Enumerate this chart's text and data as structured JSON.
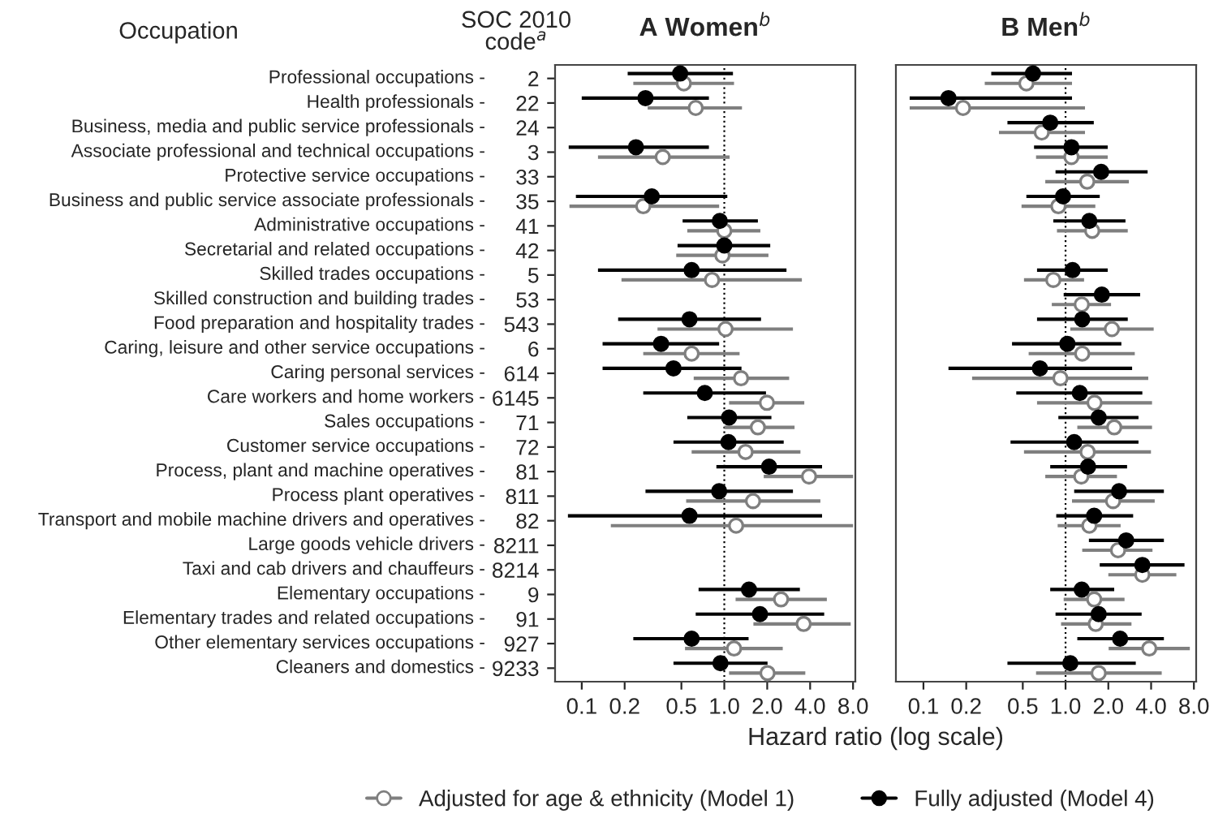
{
  "chart_data": [
    {
      "type": "scatter",
      "orientation": "horizontal",
      "title": "A Women$^{b}$",
      "xlabel": "Hazard ratio (log scale)",
      "annotations": [
        "Occupation",
        "SOC 2010\ncode$^{a}$"
      ],
      "categories": [
        "Professional occupations -",
        "Health professionals -",
        "Business, media and public service professionals -",
        "Associate professional and technical occupations -",
        "Protective service occupations -",
        "Business and public service associate professionals -",
        "Administrative occupations -",
        "Secretarial and related occupations -",
        "Skilled trades occupations -",
        "Skilled construction and building trades -",
        "Food preparation and hospitality trades -",
        "Caring, leisure and other service occupations -",
        "Caring personal services -",
        "Care workers and home workers -",
        "Sales occupations -",
        "Customer service occupations -",
        "Process, plant and machine operatives -",
        "Process plant operatives -",
        "Transport and mobile machine drivers and operatives -",
        "Large goods vehicle drivers -",
        "Taxi and cab drivers and chauffeurs -",
        "Elementary occupations -",
        "Elementary trades and related occupations -",
        "Other elementary services occupations -",
        "Cleaners and domestics -"
      ],
      "y2_categories": [
        "2",
        "22",
        "24",
        "3",
        "33",
        "35",
        "41",
        "42",
        "5",
        "53",
        "543",
        "6",
        "614",
        "6145",
        "71",
        "72",
        "81",
        "811",
        "82",
        "8211",
        "8214",
        "9",
        "91",
        "927",
        "9233"
      ],
      "log": "x",
      "xlim": [
        0.065,
        8.3
      ],
      "xticks": [
        0.1,
        0.2,
        0.5,
        {
          "value": 1,
          "label": "1.0"
        },
        {
          "value": 2,
          "label": "2.0"
        },
        {
          "value": 4,
          "label": "4.0"
        },
        {
          "value": 8,
          "label": "8.0"
        }
      ],
      "grid": false,
      "legend": "bottom",
      "marker": "circle",
      "ref_lines": [
        {
          "axis": "x",
          "value": 1,
          "label": null,
          "line_style": "dotted",
          "color": "#000000"
        }
      ],
      "series": [
        {
          "name": "Adjusted for age & ethnicity (Model 1)",
          "color": "#7f7f7f",
          "values": [
            0.52,
            0.63,
            null,
            0.37,
            null,
            0.27,
            1.0,
            0.97,
            0.82,
            null,
            1.02,
            0.59,
            1.31,
            1.99,
            1.72,
            1.41,
            3.93,
            1.59,
            1.21,
            null,
            null,
            2.5,
            3.6,
            1.17,
            2.01
          ],
          "errors": [
            [
              0.23,
              1.17
            ],
            [
              0.29,
              1.33
            ],
            null,
            [
              0.13,
              1.09
            ],
            null,
            [
              0.082,
              0.92
            ],
            [
              0.55,
              1.79
            ],
            [
              0.46,
              2.04
            ],
            [
              0.19,
              3.5
            ],
            null,
            [
              0.34,
              3.03
            ],
            [
              0.27,
              1.28
            ],
            [
              0.61,
              2.85
            ],
            [
              1.08,
              3.64
            ],
            [
              1.0,
              3.11
            ],
            [
              0.59,
              3.42
            ],
            [
              1.89,
              8.0
            ],
            [
              0.54,
              4.72
            ],
            [
              0.16,
              8.0
            ],
            null,
            null,
            [
              1.2,
              5.24
            ],
            [
              1.6,
              7.7
            ],
            [
              0.53,
              2.57
            ],
            [
              1.08,
              3.7
            ]
          ]
        },
        {
          "name": "Fully adjusted (Model 4)",
          "color": "#000000",
          "values": [
            0.49,
            0.28,
            null,
            0.24,
            null,
            0.31,
            0.93,
            1.0,
            0.59,
            null,
            0.57,
            0.36,
            0.44,
            0.73,
            1.08,
            1.07,
            2.06,
            0.92,
            0.57,
            null,
            null,
            1.49,
            1.78,
            0.59,
            0.94
          ],
          "errors": [
            [
              0.21,
              1.15
            ],
            [
              0.1,
              0.78
            ],
            null,
            [
              0.081,
              0.78
            ],
            null,
            [
              0.091,
              1.05
            ],
            [
              0.51,
              1.72
            ],
            [
              0.47,
              2.1
            ],
            [
              0.13,
              2.73
            ],
            null,
            [
              0.18,
              1.81
            ],
            [
              0.14,
              0.92
            ],
            [
              0.14,
              1.32
            ],
            [
              0.27,
              1.96
            ],
            [
              0.55,
              2.14
            ],
            [
              0.44,
              2.61
            ],
            [
              0.88,
              4.85
            ],
            [
              0.28,
              3.03
            ],
            [
              0.08,
              4.85
            ],
            null,
            null,
            [
              0.66,
              3.39
            ],
            [
              0.63,
              5.02
            ],
            [
              0.23,
              1.48
            ],
            [
              0.44,
              2.01
            ]
          ]
        }
      ]
    },
    {
      "type": "scatter",
      "orientation": "horizontal",
      "title": "B Men$^{b}$",
      "tick_labels": "x",
      "categories": [
        null,
        null,
        null,
        null,
        null,
        null,
        null,
        null,
        null,
        null,
        null,
        null,
        null,
        null,
        null,
        null,
        null,
        null,
        null,
        null,
        null,
        null,
        null,
        null,
        null
      ],
      "log": "x",
      "xlim": [
        0.064,
        8.3
      ],
      "xticks": [
        0.1,
        0.2,
        0.5,
        {
          "value": 1,
          "label": "1.0"
        },
        {
          "value": 2,
          "label": "2.0"
        },
        {
          "value": 4,
          "label": "4.0"
        },
        {
          "value": 8,
          "label": "8.0"
        }
      ],
      "grid": false,
      "marker": "circle",
      "ref_lines": [
        {
          "axis": "x",
          "value": 1,
          "label": null,
          "line_style": "dotted",
          "color": "#000000"
        }
      ],
      "series": [
        {
          "color": "#7f7f7f",
          "values": [
            0.53,
            0.19,
            0.68,
            1.1,
            1.42,
            0.89,
            1.54,
            null,
            0.82,
            1.3,
            2.12,
            1.31,
            0.92,
            1.6,
            2.2,
            1.43,
            1.29,
            2.16,
            1.47,
            2.34,
            3.47,
            1.59,
            1.63,
            3.88,
            1.71
          ],
          "errors": [
            [
              0.27,
              1.11
            ],
            [
              0.08,
              1.37
            ],
            [
              0.34,
              1.37
            ],
            [
              0.62,
              1.98
            ],
            [
              0.72,
              2.79
            ],
            [
              0.49,
              1.62
            ],
            [
              0.87,
              2.74
            ],
            null,
            [
              0.51,
              1.35
            ],
            [
              0.8,
              2.09
            ],
            [
              1.08,
              4.17
            ],
            [
              0.55,
              3.07
            ],
            [
              0.22,
              3.82
            ],
            [
              0.63,
              4.06
            ],
            [
              1.21,
              4.06
            ],
            [
              0.51,
              3.99
            ],
            [
              0.72,
              2.3
            ],
            [
              1.11,
              4.24
            ],
            [
              0.88,
              2.44
            ],
            [
              1.31,
              4.09
            ],
            [
              2.0,
              6.02
            ],
            [
              0.97,
              2.6
            ],
            [
              0.93,
              2.91
            ],
            [
              2.01,
              7.49
            ],
            [
              0.62,
              4.75
            ]
          ]
        },
        {
          "color": "#000000",
          "values": [
            0.59,
            0.15,
            0.78,
            1.1,
            1.78,
            0.96,
            1.47,
            null,
            1.12,
            1.8,
            1.31,
            1.03,
            0.66,
            1.26,
            1.71,
            1.15,
            1.44,
            2.38,
            1.59,
            2.67,
            3.47,
            1.3,
            1.71,
            2.42,
            1.08
          ],
          "errors": [
            [
              0.3,
              1.11
            ],
            [
              0.08,
              1.11
            ],
            [
              0.39,
              1.58
            ],
            [
              0.6,
              1.98
            ],
            [
              0.85,
              3.78
            ],
            [
              0.53,
              1.74
            ],
            [
              0.82,
              2.64
            ],
            null,
            [
              0.63,
              1.98
            ],
            [
              0.97,
              3.35
            ],
            [
              0.63,
              2.74
            ],
            [
              0.42,
              2.47
            ],
            [
              0.15,
              2.94
            ],
            [
              0.45,
              3.47
            ],
            [
              0.89,
              3.26
            ],
            [
              0.41,
              3.26
            ],
            [
              0.78,
              2.71
            ],
            [
              1.15,
              4.92
            ],
            [
              0.86,
              2.99
            ],
            [
              1.46,
              4.92
            ],
            [
              1.74,
              6.87
            ],
            [
              0.78,
              2.2
            ],
            [
              0.85,
              3.43
            ],
            [
              1.21,
              4.92
            ],
            [
              0.39,
              3.12
            ]
          ]
        }
      ]
    }
  ]
}
